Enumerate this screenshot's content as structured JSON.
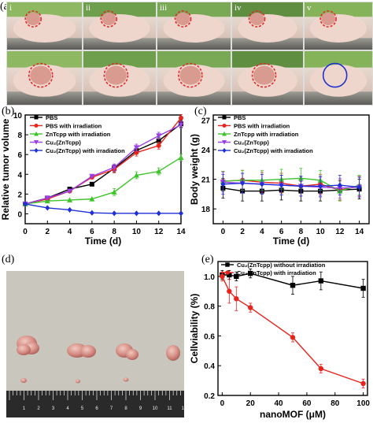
{
  "panel_labels": {
    "a": "(a)",
    "b": "(b)",
    "c": "(c)",
    "d": "(d)",
    "e": "(e)"
  },
  "photo_labels": [
    "i",
    "ii",
    "iii",
    "iv",
    "v"
  ],
  "ruler_numbers": [
    "1",
    "2",
    "3",
    "4",
    "5",
    "6",
    "7",
    "8",
    "9",
    "10",
    "11",
    "12"
  ],
  "colors": {
    "black": "#000000",
    "red": "#e8241c",
    "green": "#3ec42a",
    "purple": "#9a40e6",
    "blue": "#1f2fd6",
    "circle_red": "#e32a2a",
    "circle_blue": "#2233cc"
  },
  "chart_data": [
    {
      "id": "b",
      "type": "line",
      "xlabel": "Time (d)",
      "ylabel": "Relative tumor volume",
      "xlim": [
        0,
        14
      ],
      "ylim": [
        -1,
        10
      ],
      "xticks": [
        "0",
        "2",
        "4",
        "6",
        "8",
        "10",
        "12",
        "14"
      ],
      "yticks": [
        "0",
        "2",
        "4",
        "6",
        "8",
        "10"
      ],
      "x": [
        0,
        2,
        4,
        6,
        8,
        10,
        12,
        14
      ],
      "legend": "top-left",
      "series": [
        {
          "name": "PBS",
          "color": "black",
          "marker": "square",
          "values": [
            1.0,
            1.6,
            2.5,
            3.0,
            4.6,
            6.4,
            7.4,
            9.1
          ]
        },
        {
          "name": "PBS with irradiation",
          "color": "red",
          "marker": "circle",
          "values": [
            1.0,
            1.5,
            2.3,
            3.7,
            4.5,
            6.2,
            6.9,
            9.7
          ]
        },
        {
          "name": "ZnTcpp with irradiation",
          "color": "green",
          "marker": "triangle-up",
          "values": [
            1.0,
            1.3,
            1.4,
            1.5,
            2.2,
            3.9,
            4.3,
            5.7
          ]
        },
        {
          "name": "Cu₂(ZnTcpp)",
          "color": "purple",
          "marker": "triangle-down",
          "values": [
            1.0,
            1.6,
            2.3,
            3.8,
            4.7,
            6.7,
            7.9,
            9.0
          ]
        },
        {
          "name": "Cu₂(ZnTcpp) with irradiation",
          "color": "blue",
          "marker": "diamond",
          "values": [
            1.0,
            0.6,
            0.4,
            0.1,
            0.05,
            0.05,
            0.05,
            0.05
          ]
        }
      ]
    },
    {
      "id": "c",
      "type": "line",
      "xlabel": "Time (d)",
      "ylabel": "Body weight (g)",
      "xlim": [
        -1,
        15
      ],
      "ylim": [
        16.5,
        27.5
      ],
      "xticks": [
        "0",
        "2",
        "4",
        "6",
        "8",
        "10",
        "12",
        "14"
      ],
      "yticks": [
        "18",
        "21",
        "24",
        "27"
      ],
      "x": [
        0,
        2,
        4,
        6,
        8,
        10,
        12,
        14
      ],
      "legend": "top-left",
      "series": [
        {
          "name": "PBS",
          "color": "black",
          "marker": "square",
          "values": [
            20.1,
            19.8,
            19.8,
            19.9,
            19.8,
            19.8,
            19.9,
            20.0
          ]
        },
        {
          "name": "PBS with irradiation",
          "color": "red",
          "marker": "circle",
          "values": [
            20.8,
            20.9,
            20.7,
            20.6,
            20.3,
            20.5,
            19.9,
            20.3
          ]
        },
        {
          "name": "ZnTcpp with irradiation",
          "color": "green",
          "marker": "triangle-up",
          "values": [
            20.8,
            20.9,
            20.9,
            21.0,
            21.1,
            20.9,
            19.8,
            20.4
          ]
        },
        {
          "name": "Cu₂(ZnTcpp)",
          "color": "purple",
          "marker": "triangle-down",
          "values": [
            20.7,
            20.6,
            20.5,
            20.4,
            20.3,
            20.2,
            20.1,
            20.2
          ]
        },
        {
          "name": "Cu₂(ZnTcpp) with irradiation",
          "color": "blue",
          "marker": "diamond",
          "values": [
            20.5,
            20.6,
            20.5,
            20.4,
            20.3,
            20.3,
            20.4,
            20.2
          ]
        }
      ]
    },
    {
      "id": "e",
      "type": "line",
      "xlabel": "nanoMOF (μM)",
      "ylabel": "Cellviability (%)",
      "xlim": [
        -3,
        103
      ],
      "ylim": [
        0.2,
        1.1
      ],
      "xticks": [
        "0",
        "20",
        "40",
        "60",
        "80",
        "100"
      ],
      "yticks": [
        "0.2",
        "0.4",
        "0.6",
        "0.8",
        "1.0"
      ],
      "legend": "top-left",
      "series": [
        {
          "name": "Cu₂(ZnTcpp) without irradiation",
          "color": "black",
          "marker": "square",
          "x": [
            0,
            5,
            10,
            20,
            50,
            70,
            100
          ],
          "values": [
            1.01,
            1.01,
            1.0,
            1.02,
            0.94,
            0.97,
            0.92
          ]
        },
        {
          "name": "Cu₂(ZnTcpp) with irradiation",
          "color": "red",
          "marker": "circle",
          "x": [
            0,
            5,
            10,
            20,
            50,
            70,
            100
          ],
          "values": [
            1.0,
            0.9,
            0.85,
            0.79,
            0.59,
            0.38,
            0.28
          ]
        }
      ]
    }
  ]
}
